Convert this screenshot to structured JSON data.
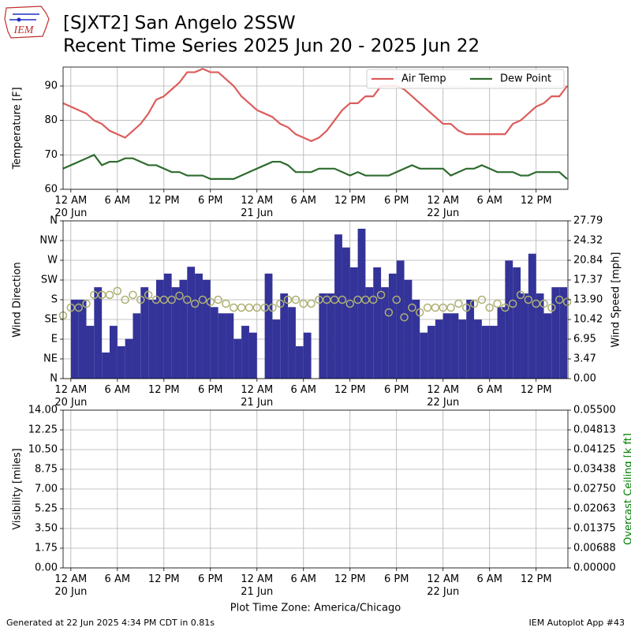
{
  "header": {
    "logo_text": "IEM",
    "title": "[SJXT2] San Angelo 2SSW",
    "subtitle": "Recent Time Series 2025 Jun 20 - 2025 Jun 22"
  },
  "footer": {
    "generated": "Generated at 22 Jun 2025 4:34 PM CDT in 0.81s",
    "app": "IEM Autoplot App #43"
  },
  "chart_data": [
    {
      "type": "line",
      "ylabel": "Temperature [F]",
      "xlim": [
        -1,
        64.1
      ],
      "xticks": [
        {
          "value": 0,
          "label": "12 AM\n20 Jun"
        },
        {
          "value": 6,
          "label": "6 AM"
        },
        {
          "value": 12,
          "label": "12 PM"
        },
        {
          "value": 18,
          "label": "6 PM"
        },
        {
          "value": 24,
          "label": "12 AM\n21 Jun"
        },
        {
          "value": 30,
          "label": "6 AM"
        },
        {
          "value": 36,
          "label": "12 PM"
        },
        {
          "value": 42,
          "label": "6 PM"
        },
        {
          "value": 48,
          "label": "12 AM\n22 Jun"
        },
        {
          "value": 54,
          "label": "6 AM"
        },
        {
          "value": 60,
          "label": "12 PM"
        }
      ],
      "ylim": [
        60,
        95.5
      ],
      "yticks": [
        60,
        70,
        80,
        90
      ],
      "grid": true,
      "legend": "upper right",
      "series": [
        {
          "name": "Air Temp",
          "color": "#dd5c5c",
          "x": [
            -1,
            0,
            1,
            2,
            3,
            4,
            5,
            6,
            7,
            8,
            9,
            10,
            11,
            12,
            13,
            14,
            15,
            16,
            17,
            18,
            19,
            20,
            21,
            22,
            23,
            24,
            25,
            26,
            27,
            28,
            29,
            30,
            31,
            32,
            33,
            34,
            35,
            36,
            37,
            38,
            39,
            40,
            41,
            42,
            43,
            44,
            45,
            46,
            47,
            48,
            49,
            50,
            51,
            52,
            53,
            54,
            55,
            56,
            57,
            58,
            59,
            60,
            61,
            62,
            63,
            64
          ],
          "values": [
            85,
            84,
            83,
            82,
            80,
            79,
            77,
            76,
            75,
            77,
            79,
            82,
            86,
            87,
            89,
            91,
            94,
            94,
            95,
            94,
            94,
            92,
            90,
            87,
            85,
            83,
            82,
            81,
            79,
            78,
            76,
            75,
            74,
            75,
            77,
            80,
            83,
            85,
            85,
            87,
            87,
            90,
            90,
            90,
            89,
            87,
            85,
            83,
            81,
            79,
            79,
            77,
            76,
            76,
            76,
            76,
            76,
            76,
            79,
            80,
            82,
            84,
            85,
            87,
            87,
            90
          ]
        },
        {
          "name": "Dew Point",
          "color": "#2e6b2e",
          "x": [
            -1,
            0,
            1,
            2,
            3,
            4,
            5,
            6,
            7,
            8,
            9,
            10,
            11,
            12,
            13,
            14,
            15,
            16,
            17,
            18,
            19,
            20,
            21,
            22,
            23,
            24,
            25,
            26,
            27,
            28,
            29,
            30,
            31,
            32,
            33,
            34,
            35,
            36,
            37,
            38,
            39,
            40,
            41,
            42,
            43,
            44,
            45,
            46,
            47,
            48,
            49,
            50,
            51,
            52,
            53,
            54,
            55,
            56,
            57,
            58,
            59,
            60,
            61,
            62,
            63,
            64
          ],
          "values": [
            66,
            67,
            68,
            69,
            70,
            67,
            68,
            68,
            69,
            69,
            68,
            67,
            67,
            66,
            65,
            65,
            64,
            64,
            64,
            63,
            63,
            63,
            63,
            64,
            65,
            66,
            67,
            68,
            68,
            67,
            65,
            65,
            65,
            66,
            66,
            66,
            65,
            64,
            65,
            64,
            64,
            64,
            64,
            65,
            66,
            67,
            66,
            66,
            66,
            66,
            64,
            65,
            66,
            66,
            67,
            66,
            65,
            65,
            65,
            64,
            64,
            65,
            65,
            65,
            65,
            63
          ]
        }
      ]
    },
    {
      "type": "bar",
      "ylabel": "Wind Direction",
      "y2label": "Wind Speed [mph]",
      "xlim": [
        -1,
        64.1
      ],
      "xticks": [
        {
          "value": 0,
          "label": "12 AM\n20 Jun"
        },
        {
          "value": 6,
          "label": "6 AM"
        },
        {
          "value": 12,
          "label": "12 PM"
        },
        {
          "value": 18,
          "label": "6 PM"
        },
        {
          "value": 24,
          "label": "12 AM\n21 Jun"
        },
        {
          "value": 30,
          "label": "6 AM"
        },
        {
          "value": 36,
          "label": "12 PM"
        },
        {
          "value": 42,
          "label": "6 PM"
        },
        {
          "value": 48,
          "label": "12 AM\n22 Jun"
        },
        {
          "value": 54,
          "label": "6 AM"
        },
        {
          "value": 60,
          "label": "12 PM"
        }
      ],
      "ylim": [
        0,
        360
      ],
      "yticks": [
        {
          "value": 0,
          "label": "N"
        },
        {
          "value": 45,
          "label": "NE"
        },
        {
          "value": 90,
          "label": "E"
        },
        {
          "value": 135,
          "label": "SE"
        },
        {
          "value": 180,
          "label": "S"
        },
        {
          "value": 225,
          "label": "SW"
        },
        {
          "value": 270,
          "label": "W"
        },
        {
          "value": 315,
          "label": "NW"
        },
        {
          "value": 360,
          "label": "N"
        }
      ],
      "y2lim": [
        0,
        27.79
      ],
      "y2ticks": [
        {
          "value": 0,
          "label": "0.00"
        },
        3.47,
        6.95,
        10.42,
        {
          "value": 13.9,
          "label": "13.90"
        },
        17.37,
        20.84,
        24.32,
        27.79
      ],
      "grid": true,
      "series": [
        {
          "axis": "y2",
          "color": "#333399",
          "x": [
            0,
            1,
            2,
            3,
            4,
            5,
            6,
            7,
            8,
            9,
            10,
            11,
            12,
            13,
            14,
            15,
            16,
            17,
            18,
            19,
            20,
            21,
            22,
            23,
            24,
            25,
            26,
            27,
            28,
            29,
            30,
            31,
            32,
            33,
            34,
            35,
            36,
            37,
            38,
            39,
            40,
            41,
            42,
            43,
            44,
            45,
            46,
            47,
            48,
            49,
            50,
            51,
            52,
            53,
            54,
            55,
            56,
            57,
            58,
            59,
            60,
            61,
            62,
            63
          ],
          "values": [
            13.9,
            13.9,
            9.3,
            16.1,
            4.6,
            9.3,
            5.7,
            7.0,
            11.5,
            16.1,
            13.9,
            17.4,
            18.5,
            16.1,
            17.4,
            19.7,
            18.5,
            17.4,
            12.6,
            11.5,
            11.5,
            7.0,
            9.3,
            8.1,
            0,
            18.5,
            10.4,
            15.0,
            12.6,
            5.7,
            8.1,
            0,
            15.0,
            15.0,
            25.4,
            23.1,
            19.6,
            26.4,
            16.1,
            19.6,
            16.1,
            18.5,
            20.8,
            17.4,
            13.9,
            8.1,
            9.3,
            10.4,
            11.5,
            11.5,
            10.4,
            13.9,
            10.4,
            9.3,
            9.3,
            12.6,
            20.8,
            19.6,
            15.0,
            22.0,
            15.0,
            11.5,
            16.1,
            16.1
          ]
        },
        {
          "type": "scatter",
          "color": "#aeb073",
          "x": [
            -1,
            0,
            1,
            2,
            3,
            4,
            5,
            6,
            7,
            8,
            9,
            10,
            11,
            12,
            13,
            14,
            15,
            16,
            17,
            18,
            19,
            20,
            21,
            22,
            23,
            24,
            25,
            26,
            27,
            28,
            29,
            30,
            31,
            32,
            33,
            34,
            35,
            36,
            37,
            38,
            39,
            40,
            41,
            42,
            43,
            44,
            45,
            46,
            47,
            48,
            49,
            50,
            51,
            52,
            53,
            54,
            55,
            56,
            57,
            58,
            59,
            60,
            61,
            62,
            63,
            64
          ],
          "values": [
            144,
            162,
            162,
            171,
            191,
            191,
            191,
            200,
            180,
            191,
            180,
            191,
            180,
            180,
            180,
            189,
            180,
            171,
            180,
            175,
            180,
            171,
            162,
            162,
            162,
            162,
            162,
            162,
            171,
            180,
            180,
            171,
            171,
            180,
            180,
            180,
            180,
            171,
            180,
            180,
            180,
            191,
            151,
            180,
            140,
            162,
            151,
            162,
            162,
            162,
            162,
            171,
            162,
            171,
            180,
            162,
            171,
            162,
            171,
            191,
            180,
            171,
            171,
            162,
            180,
            175
          ]
        }
      ]
    },
    {
      "type": "line",
      "ylabel": "Visibility [miles]",
      "y2label": "Overcast Ceiling [k ft]",
      "y2label_color": "#008000",
      "xlabel": "Plot Time Zone: America/Chicago",
      "xlim": [
        -1,
        64.1
      ],
      "xticks": [
        {
          "value": 0,
          "label": "12 AM\n20 Jun"
        },
        {
          "value": 6,
          "label": "6 AM"
        },
        {
          "value": 12,
          "label": "12 PM"
        },
        {
          "value": 18,
          "label": "6 PM"
        },
        {
          "value": 24,
          "label": "12 AM\n21 Jun"
        },
        {
          "value": 30,
          "label": "6 AM"
        },
        {
          "value": 36,
          "label": "12 PM"
        },
        {
          "value": 42,
          "label": "6 PM"
        },
        {
          "value": 48,
          "label": "12 AM\n22 Jun"
        },
        {
          "value": 54,
          "label": "6 AM"
        },
        {
          "value": 60,
          "label": "12 PM"
        }
      ],
      "ylim": [
        0,
        14
      ],
      "yticks": [
        {
          "value": 0,
          "label": "0.00"
        },
        1.75,
        {
          "value": 3.5,
          "label": "3.50"
        },
        5.25,
        {
          "value": 7,
          "label": "7.00"
        },
        8.75,
        {
          "value": 10.5,
          "label": "10.50"
        },
        12.25,
        {
          "value": 14,
          "label": "14.00"
        }
      ],
      "y2lim": [
        0,
        0.055
      ],
      "y2ticks": [
        {
          "value": 0,
          "label": "0.00000"
        },
        {
          "value": 0.006875,
          "label": "0.00688"
        },
        {
          "value": 0.01375,
          "label": "0.01375"
        },
        {
          "value": 0.020625,
          "label": "0.02063"
        },
        {
          "value": 0.0275,
          "label": "0.02750"
        },
        {
          "value": 0.034375,
          "label": "0.03438"
        },
        {
          "value": 0.04125,
          "label": "0.04125"
        },
        {
          "value": 0.048125,
          "label": "0.04813"
        },
        {
          "value": 0.055,
          "label": "0.05500"
        }
      ],
      "grid": true,
      "series": []
    }
  ]
}
